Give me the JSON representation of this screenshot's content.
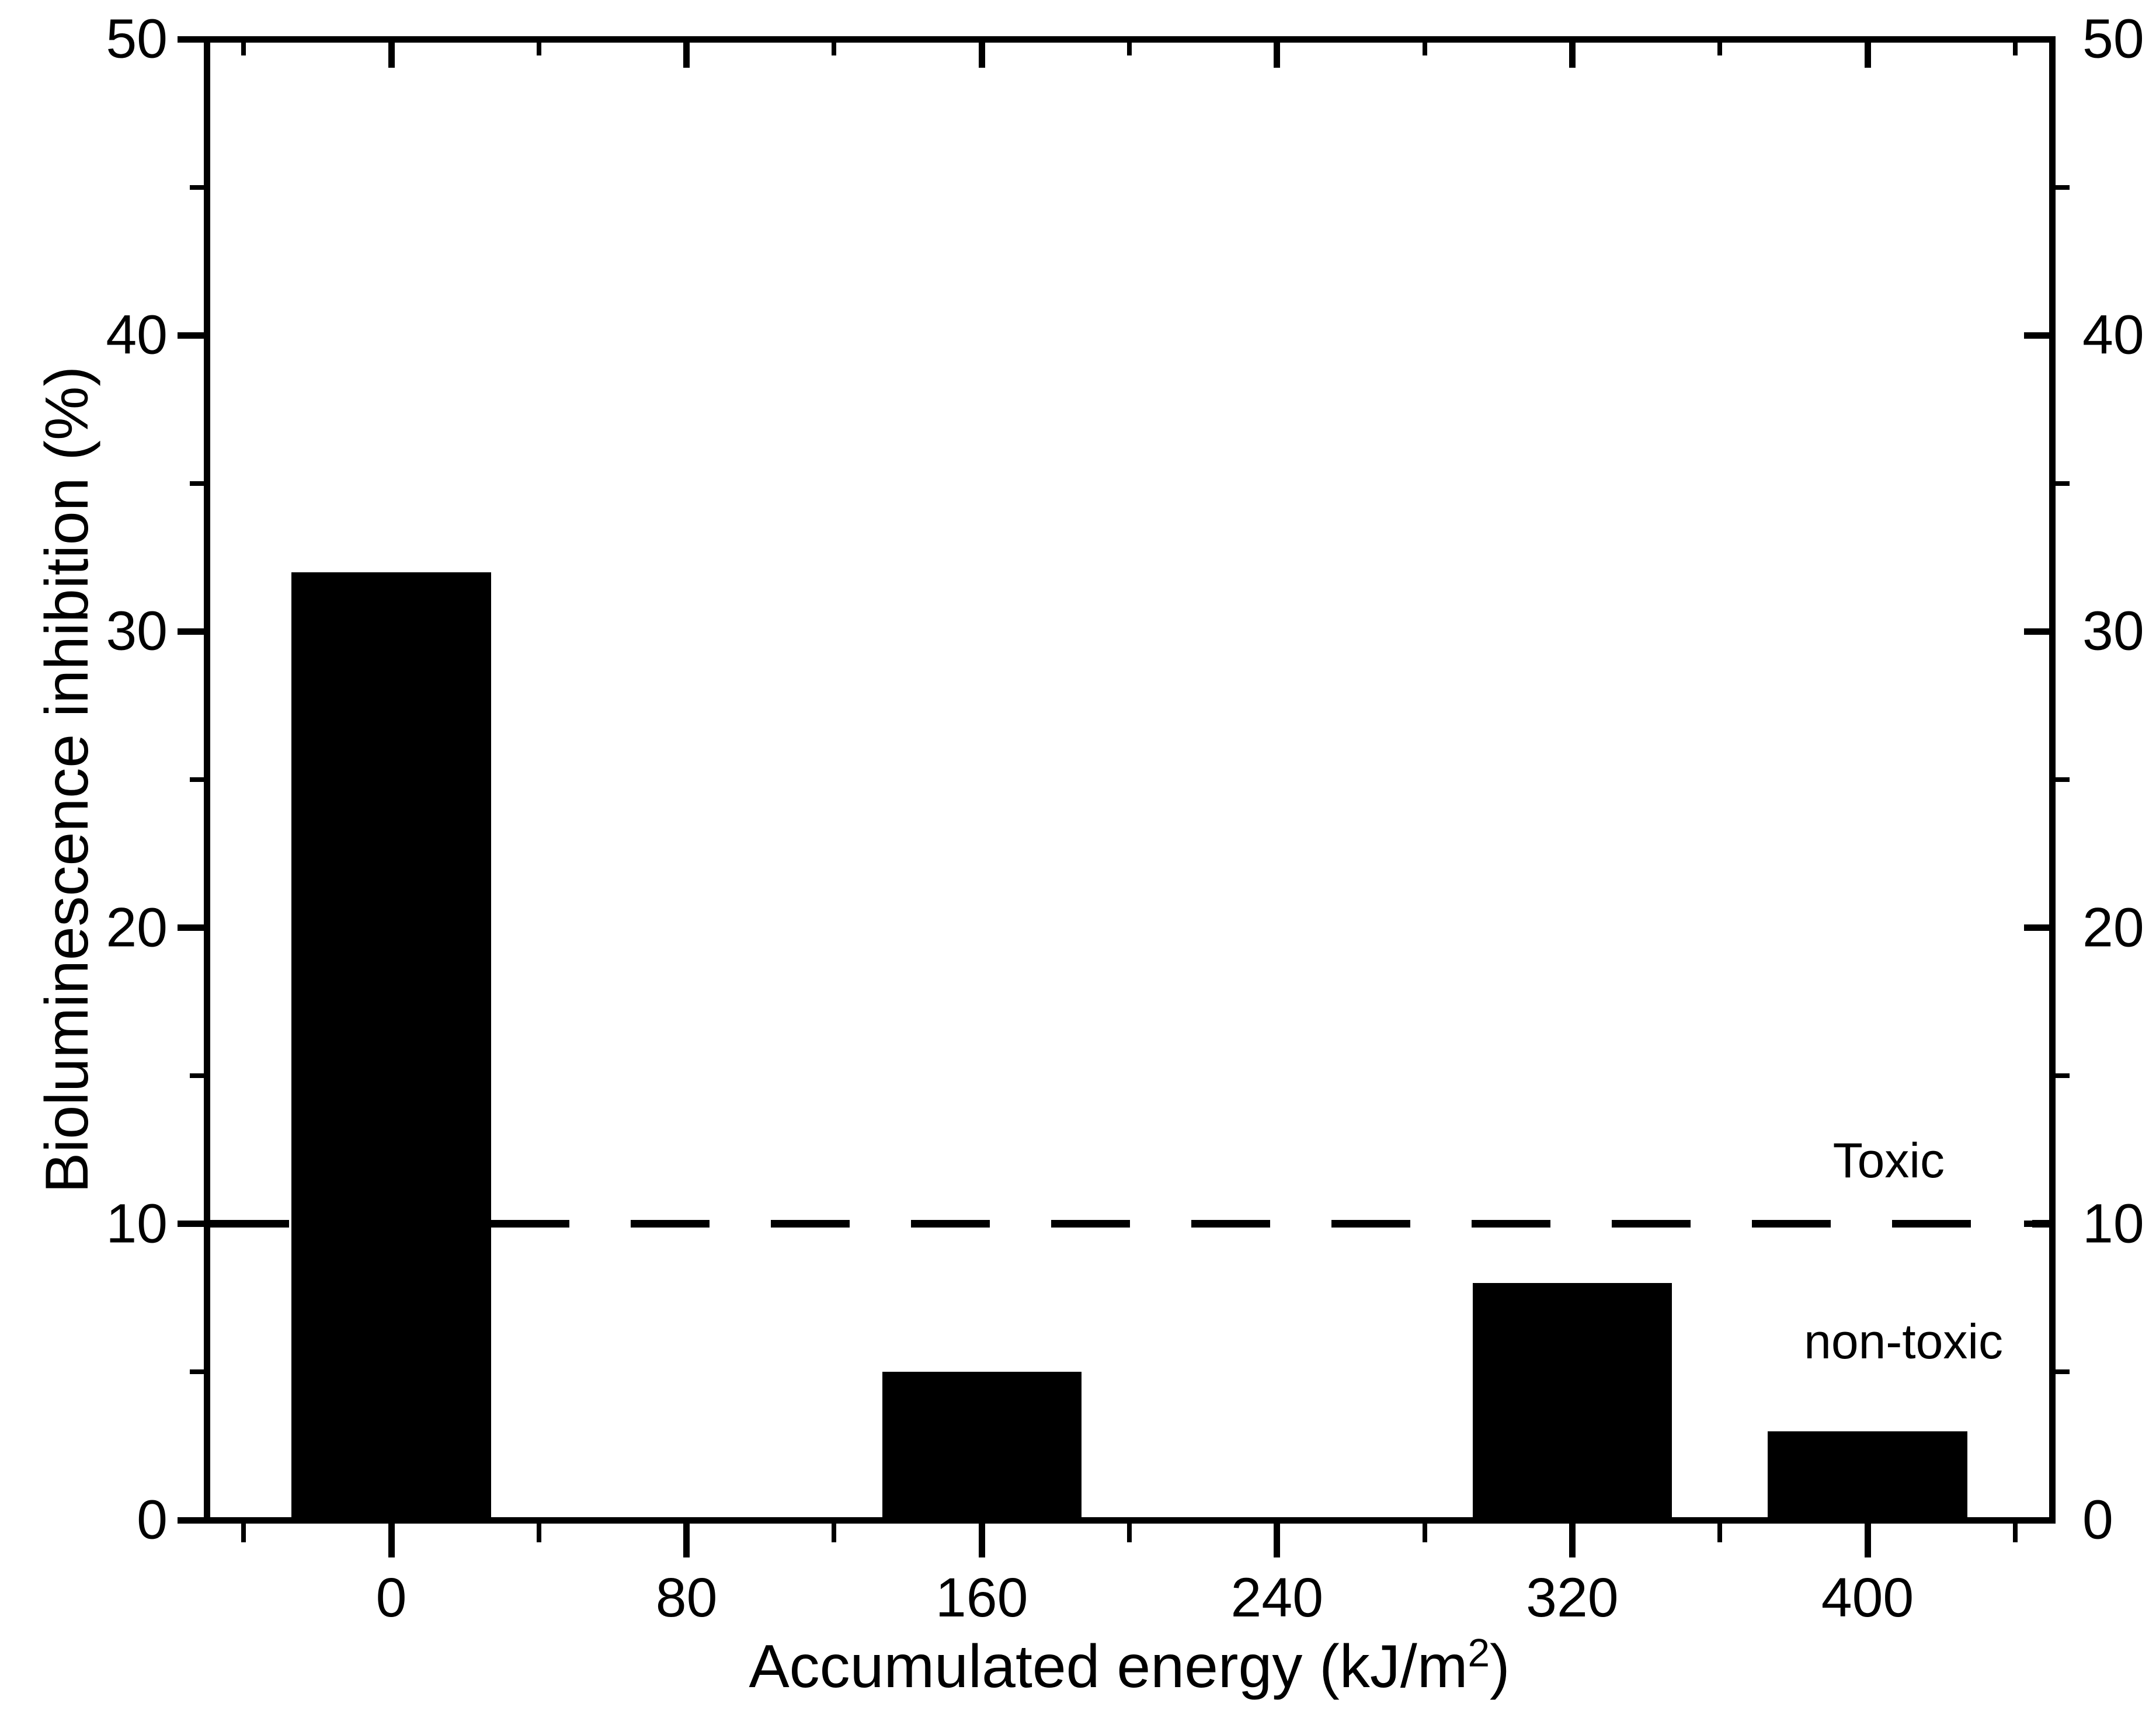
{
  "chart_data": {
    "type": "bar",
    "title": "",
    "ylabel": "Bioluminescence inhibition (%)",
    "xlabel": {
      "prefix": "Accumulated energy (kJ/m",
      "superscript": "2",
      "suffix": ")"
    },
    "xlim": [
      -50,
      450
    ],
    "ylim": [
      0,
      50
    ],
    "x_major_ticks": [
      0,
      80,
      160,
      240,
      320,
      400
    ],
    "x_minor_ticks": [
      -40,
      40,
      120,
      200,
      280,
      360,
      440
    ],
    "y_major_ticks": [
      0,
      10,
      20,
      30,
      40,
      50
    ],
    "y_minor_ticks": [
      5,
      15,
      25,
      35,
      45
    ],
    "categories": [
      0,
      80,
      160,
      240,
      320,
      400
    ],
    "values": [
      32,
      0,
      5,
      0,
      8,
      3
    ],
    "bar_width_units": 54,
    "bar_color": "#000000",
    "axis_color": "#000000",
    "background_color": "#ffffff",
    "threshold_line": {
      "y": 10,
      "style": "dashed",
      "color": "#000000",
      "label_above": "Toxic",
      "label_below": "non-toxic"
    },
    "grid": false,
    "legend": null
  }
}
